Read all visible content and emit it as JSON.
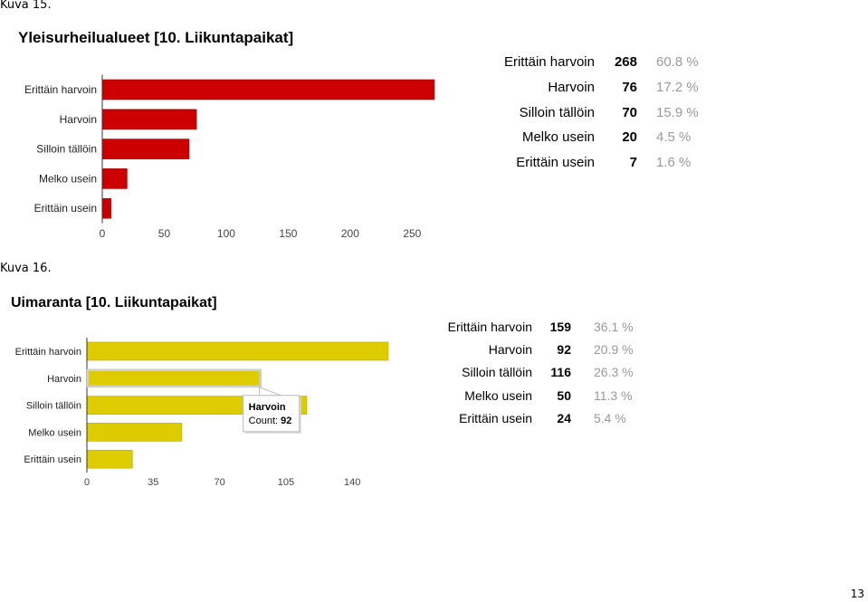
{
  "captions": [
    "Kuva 15.",
    "Kuva 16."
  ],
  "page_number": "13",
  "colors": {
    "chart1_bar": "#cc0000",
    "chart1_bar_edge": "#a60000",
    "chart2_bar": "#ddcc00",
    "chart2_bar_edge": "#b8a900",
    "axis_line": "#333333",
    "percent_text": "#999999"
  },
  "chart_data": [
    {
      "type": "bar",
      "orientation": "horizontal",
      "title": "Yleisurheilualueet [10. Liikuntapaikat]",
      "categories": [
        "Erittäin harvoin",
        "Harvoin",
        "Silloin tällöin",
        "Melko usein",
        "Erittäin usein"
      ],
      "values": [
        268,
        76,
        70,
        20,
        7
      ],
      "percentages": [
        "60.8 %",
        "17.2 %",
        "15.9 %",
        "4.5 %",
        "1.6 %"
      ],
      "xticks": [
        0,
        50,
        100,
        150,
        200,
        250
      ],
      "xlim": [
        0,
        268
      ],
      "xlabel": "",
      "ylabel": "",
      "grid": false,
      "legend": "none"
    },
    {
      "type": "bar",
      "orientation": "horizontal",
      "title": "Uimaranta [10. Liikuntapaikat]",
      "categories": [
        "Erittäin harvoin",
        "Harvoin",
        "Silloin tällöin",
        "Melko usein",
        "Erittäin usein"
      ],
      "values": [
        159,
        92,
        116,
        50,
        24
      ],
      "percentages": [
        "36.1 %",
        "20.9 %",
        "26.3 %",
        "11.3 %",
        "5.4 %"
      ],
      "xticks": [
        0,
        35,
        70,
        105,
        140
      ],
      "xlim": [
        0,
        159
      ],
      "xlabel": "",
      "ylabel": "",
      "grid": false,
      "legend": "none",
      "highlighted": "Harvoin",
      "tooltip": {
        "title": "Harvoin",
        "label": "Count: ",
        "value": "92"
      }
    }
  ]
}
